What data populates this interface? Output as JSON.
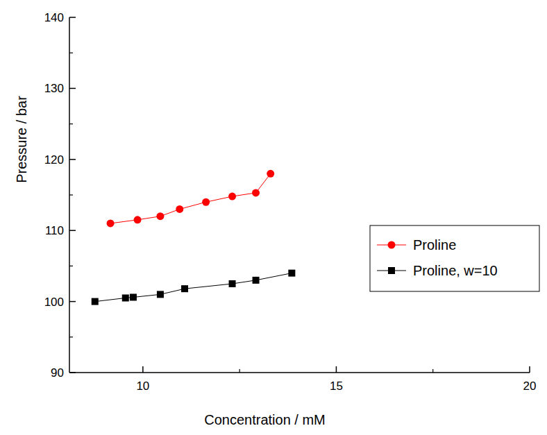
{
  "chart_data": {
    "type": "line",
    "x_label": "Concentration / mM",
    "y_label": "Pressure / bar",
    "xlim": [
      8.1,
      20
    ],
    "xticks": [
      10,
      15,
      20
    ],
    "ylim": [
      90,
      140
    ],
    "yticks": [
      90,
      100,
      110,
      120,
      130,
      140
    ],
    "grid": false,
    "legend": "right",
    "series": [
      {
        "name": "Proline",
        "color": "#ff0000",
        "marker": "circle",
        "line_style": "solid",
        "x": [
          9.16,
          9.86,
          10.45,
          10.95,
          11.63,
          12.31,
          12.92,
          13.3
        ],
        "values": [
          111.0,
          111.5,
          112.0,
          113.0,
          114.0,
          114.8,
          115.3,
          118.0
        ]
      },
      {
        "name": "Proline, w=10",
        "color": "#000000",
        "marker": "square",
        "line_style": "solid",
        "x": [
          8.76,
          9.55,
          9.75,
          10.45,
          11.08,
          12.31,
          12.92,
          13.85
        ],
        "values": [
          100.0,
          100.5,
          100.6,
          101.0,
          101.8,
          102.5,
          103.0,
          104.0
        ]
      }
    ]
  }
}
